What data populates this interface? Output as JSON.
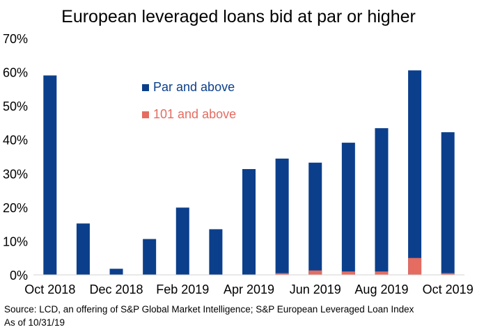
{
  "chart_data": {
    "type": "bar",
    "stacked": true,
    "title": "European leveraged loans bid at par or higher",
    "xlabel": "",
    "ylabel": "",
    "ylim": [
      0,
      70
    ],
    "y_ticks": [
      "0%",
      "10%",
      "20%",
      "30%",
      "40%",
      "50%",
      "60%",
      "70%"
    ],
    "y_tick_values": [
      0,
      10,
      20,
      30,
      40,
      50,
      60,
      70
    ],
    "grid": false,
    "legend_placement": "upper-left inside plot",
    "categories": [
      "Oct 2018",
      "Nov 2018",
      "Dec 2018",
      "Jan 2019",
      "Feb 2019",
      "Mar 2019",
      "Apr 2019",
      "May 2019",
      "Jun 2019",
      "Jul 2019",
      "Aug 2019",
      "Sep 2019",
      "Oct 2019"
    ],
    "x_tick_labels": [
      "Oct 2018",
      "",
      "Dec 2018",
      "",
      "Feb 2019",
      "",
      "Apr 2019",
      "",
      "Jun 2019",
      "",
      "Aug 2019",
      "",
      "Oct 2019"
    ],
    "series": [
      {
        "name": "Par and above",
        "color": "#0b3f8c",
        "values": [
          59,
          15.2,
          1.8,
          10.6,
          19.9,
          13.5,
          31.3,
          34.4,
          33.2,
          39.1,
          43.4,
          60.5,
          42.2
        ]
      },
      {
        "name": "101 and above",
        "color": "#e46c61",
        "values": [
          0,
          0,
          0,
          0,
          0,
          0,
          0,
          0.5,
          1.3,
          1.0,
          1.0,
          5.0,
          0.5
        ]
      }
    ]
  },
  "footer": {
    "source": "Source: LCD, an offering of S&P Global Market Intelligence; S&P European Leveraged Loan Index",
    "as_of": "As of 10/31/19"
  }
}
